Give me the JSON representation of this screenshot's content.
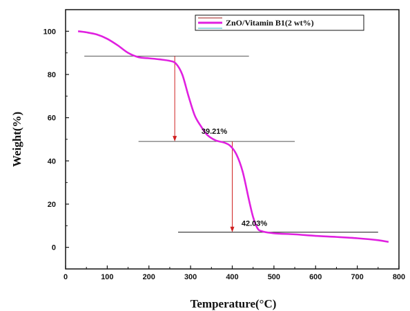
{
  "chart_data": {
    "type": "line",
    "xlabel": "Temperature(°C)",
    "ylabel": "Weight(%)",
    "xlim": [
      0,
      800
    ],
    "ylim": [
      -10,
      110
    ],
    "x_ticks": [
      0,
      100,
      200,
      300,
      400,
      500,
      600,
      700,
      800
    ],
    "y_ticks": [
      0,
      20,
      40,
      60,
      80,
      100
    ],
    "grid": false,
    "legend_position": "top-right",
    "series": [
      {
        "name": "ZnO/Vitamin B1(2 wt%)",
        "color": "#e020e0",
        "points": [
          [
            30,
            100
          ],
          [
            50,
            99.5
          ],
          [
            75,
            98.5
          ],
          [
            100,
            96.5
          ],
          [
            125,
            93.5
          ],
          [
            150,
            90
          ],
          [
            175,
            88
          ],
          [
            200,
            87.5
          ],
          [
            225,
            87
          ],
          [
            250,
            86.3
          ],
          [
            265,
            85
          ],
          [
            280,
            80
          ],
          [
            295,
            70
          ],
          [
            310,
            61
          ],
          [
            325,
            56
          ],
          [
            340,
            52
          ],
          [
            360,
            49.5
          ],
          [
            380,
            48.5
          ],
          [
            395,
            47
          ],
          [
            410,
            43
          ],
          [
            425,
            35
          ],
          [
            440,
            22
          ],
          [
            450,
            14
          ],
          [
            460,
            9
          ],
          [
            470,
            7.5
          ],
          [
            500,
            6.5
          ],
          [
            550,
            6
          ],
          [
            600,
            5.3
          ],
          [
            650,
            4.8
          ],
          [
            700,
            4.2
          ],
          [
            750,
            3.3
          ],
          [
            775,
            2.5
          ]
        ]
      }
    ],
    "reference_lines": [
      {
        "y": 88.5,
        "x_start": 45,
        "x_end": 440,
        "color": "#555555"
      },
      {
        "y": 49,
        "x_start": 175,
        "x_end": 550,
        "color": "#555555"
      },
      {
        "y": 7,
        "x_start": 270,
        "x_end": 750,
        "color": "#111111"
      }
    ],
    "arrows": [
      {
        "x": 262,
        "y_from": 88.5,
        "y_to": 49,
        "color": "#d02020"
      },
      {
        "x": 400,
        "y_from": 49,
        "y_to": 7,
        "color": "#d02020"
      }
    ],
    "annotations": [
      {
        "text": "39.21%",
        "x": 357,
        "y": 52.5
      },
      {
        "text": "42.03%",
        "x": 453,
        "y": 10
      }
    ]
  }
}
